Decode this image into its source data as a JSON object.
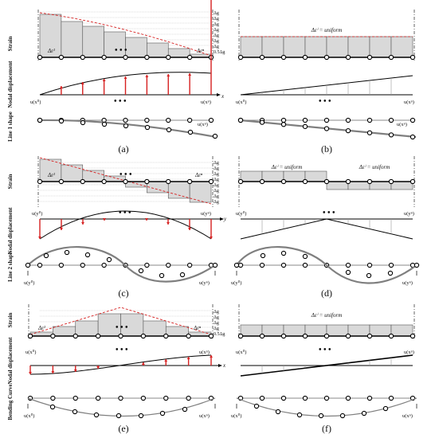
{
  "rows": [
    {
      "labels": [
        "Strain",
        "Nodal displacement",
        "Line 1 shape"
      ],
      "left": {
        "panel": "(a)",
        "strain_first": "Δε¹",
        "strain_last": "Δεⁿ",
        "strain_scale": [
          "Δg",
          "Δg",
          "Δg",
          "Δg",
          "Δg",
          "Δg",
          "Δg",
          "0.5Δg"
        ],
        "disp_start": "u(x⁰)",
        "disp_end": "u(xⁿ)",
        "axis": "x",
        "shape_end": "u(xⁿ)",
        "dots": "• • •"
      },
      "right": {
        "panel": "(b)",
        "strain_eq": "Δεⁱ = uniform",
        "disp_start": "u(x⁰)",
        "disp_end": "u(xⁿ)",
        "shape_end": "u(xⁿ)",
        "dots": "• • •"
      }
    },
    {
      "labels": [
        "Strain",
        "Nodal displacement",
        "Line 2 shape"
      ],
      "left": {
        "panel": "(c)",
        "strain_first": "Δε¹",
        "strain_last": "Δεⁿ",
        "strain_scale": [
          "Δg",
          "Δg",
          "Δg",
          "Δg",
          "Δg",
          "Δg",
          "Δg",
          "Δg"
        ],
        "disp_start": "u(y⁰)",
        "disp_end": "u(yⁿ)",
        "axis": "y",
        "shape_start": "u(y⁰)",
        "shape_end": "u(yⁿ)",
        "dots": "• • •"
      },
      "right": {
        "panel": "(d)",
        "strain_eq_left": "Δεⁱ = uniform",
        "strain_eq_right": "Δεⁱ = uniform",
        "disp_start": "u(y⁰)",
        "disp_end": "u(yⁿ)",
        "shape_start": "u(y⁰)",
        "shape_end": "u(yⁿ)",
        "dots": "• • •"
      }
    },
    {
      "labels": [
        "Strain",
        "Nodal displacement",
        "Bending Curve"
      ],
      "left": {
        "panel": "(e)",
        "strain_first": "Δε¹",
        "strain_last": "Δεⁿ",
        "strain_scale": [
          "Δg",
          "Δg",
          "Δg",
          "Δg",
          "0.5Δg"
        ],
        "disp_start": "u(x⁰)",
        "disp_end": "u(xⁿ)",
        "axis": "x",
        "shape_start": "u(x⁰)",
        "shape_end": "u(xⁿ)",
        "dots": "• • •"
      },
      "right": {
        "panel": "(f)",
        "strain_eq": "Δεⁱ = uniform",
        "disp_start": "u(x⁰)",
        "disp_end": "u(xⁿ)",
        "shape_start": "u(x⁰)",
        "shape_end": "u(xⁿ)",
        "dots": "• • •"
      }
    }
  ],
  "colors": {
    "bar_fill": "#d9d9d9",
    "arrow": "#d62020",
    "curve": "#7f7f7f",
    "dashed_envelope": "#d62020"
  }
}
